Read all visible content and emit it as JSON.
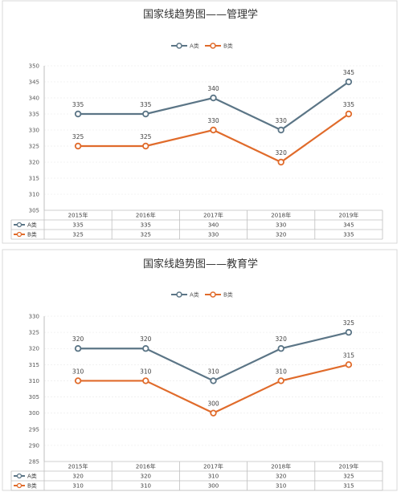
{
  "chart_data": [
    {
      "type": "line",
      "title": "国家线趋势图——管理学",
      "categories": [
        "2015年",
        "2016年",
        "2017年",
        "2018年",
        "2019年"
      ],
      "series": [
        {
          "name": "A类",
          "values": [
            335,
            335,
            340,
            330,
            345
          ],
          "color": "#5b7586"
        },
        {
          "name": "B类",
          "values": [
            325,
            325,
            330,
            320,
            335
          ],
          "color": "#e06b2b"
        }
      ],
      "ylim": [
        305,
        350
      ],
      "yticks": [
        305,
        310,
        315,
        320,
        325,
        330,
        335,
        340,
        345,
        350
      ],
      "legend": "top",
      "data_table": true
    },
    {
      "type": "line",
      "title": "国家线趋势图——教育学",
      "categories": [
        "2015年",
        "2016年",
        "2017年",
        "2018年",
        "2019年"
      ],
      "series": [
        {
          "name": "A类",
          "values": [
            320,
            320,
            310,
            320,
            325
          ],
          "color": "#5b7586"
        },
        {
          "name": "B类",
          "values": [
            310,
            310,
            300,
            310,
            315
          ],
          "color": "#e06b2b"
        }
      ],
      "ylim": [
        285,
        330
      ],
      "yticks": [
        285,
        290,
        295,
        300,
        305,
        310,
        315,
        320,
        325,
        330
      ],
      "legend": "top",
      "data_table": true
    }
  ]
}
